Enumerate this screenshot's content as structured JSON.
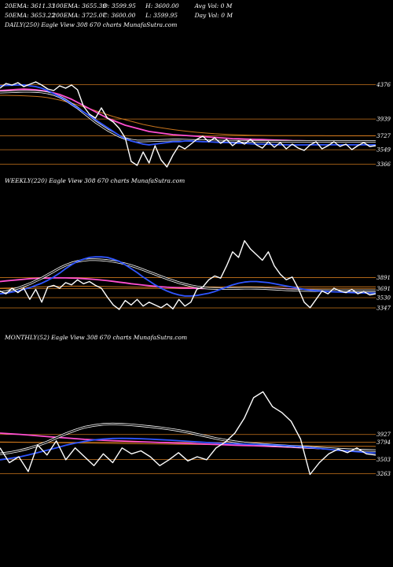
{
  "header": {
    "row1": [
      "20EMA: 3611.33",
      "100EMA: 3655.39",
      "O: 3599.95",
      "H: 3600.00",
      "Avg Vol: 0  M"
    ],
    "row2": [
      "50EMA: 3653.22",
      "200EMA: 3725.07",
      "C: 3600.00",
      "L: 3599.95",
      "Day Vol: 0  M"
    ]
  },
  "panels": [
    {
      "label": "DAILY(250) Eagle  View  308              670  charts MunafaSutra.com"
    },
    {
      "label": "WEEKLY(220) Eagle  View  308              670  charts MunafaSutra.com"
    },
    {
      "label": "MONTHLY(52) Eagle  View  308              670  charts MunafaSutra.com"
    }
  ],
  "colors": {
    "price": "#ffffff",
    "ema20": "#2f55ff",
    "ema50": "#ff4fd0",
    "ema100": "#ffffff",
    "ema200": "#c8741c",
    "level": "#c8741c"
  },
  "chart_data": [
    {
      "type": "line",
      "name": "DAILY(250)",
      "levels": [
        4376,
        3939,
        3727,
        3549,
        3366
      ],
      "ylim": [
        3300,
        4450
      ],
      "series": [
        {
          "key": "price",
          "values": [
            4330,
            4390,
            4370,
            4400,
            4350,
            4380,
            4410,
            4370,
            4320,
            4300,
            4360,
            4330,
            4370,
            4310,
            4100,
            4000,
            3950,
            4080,
            3950,
            3900,
            3820,
            3700,
            3400,
            3350,
            3520,
            3380,
            3600,
            3420,
            3330,
            3480,
            3600,
            3560,
            3620,
            3680,
            3720,
            3650,
            3700,
            3630,
            3680,
            3600,
            3660,
            3620,
            3680,
            3610,
            3570,
            3650,
            3580,
            3640,
            3560,
            3620,
            3570,
            3540,
            3610,
            3650,
            3560,
            3600,
            3650,
            3590,
            3620,
            3550,
            3600,
            3640,
            3590,
            3600
          ]
        },
        {
          "key": "ema20",
          "values": [
            4360,
            4365,
            4368,
            4370,
            4372,
            4360,
            4350,
            4330,
            4300,
            4260,
            4220,
            4180,
            4130,
            4080,
            4030,
            3980,
            3930,
            3880,
            3830,
            3780,
            3730,
            3690,
            3660,
            3640,
            3620,
            3610,
            3620,
            3630,
            3640,
            3650,
            3650,
            3660,
            3660,
            3655,
            3650,
            3650,
            3645,
            3640,
            3640,
            3635,
            3630,
            3630,
            3625,
            3620,
            3620,
            3618,
            3615,
            3612,
            3611,
            3610,
            3610,
            3610,
            3611,
            3611,
            3611,
            3611,
            3611,
            3611,
            3611,
            3611,
            3611,
            3611,
            3611,
            3611
          ]
        },
        {
          "key": "ema50",
          "values": [
            4300,
            4305,
            4310,
            4315,
            4318,
            4315,
            4310,
            4300,
            4290,
            4270,
            4250,
            4220,
            4190,
            4150,
            4110,
            4070,
            4030,
            3990,
            3950,
            3920,
            3890,
            3860,
            3840,
            3820,
            3800,
            3780,
            3770,
            3760,
            3750,
            3740,
            3735,
            3730,
            3725,
            3720,
            3715,
            3710,
            3705,
            3700,
            3695,
            3690,
            3688,
            3685,
            3682,
            3680,
            3678,
            3675,
            3672,
            3670,
            3668,
            3665,
            3664,
            3662,
            3660,
            3659,
            3658,
            3657,
            3656,
            3655,
            3655,
            3654,
            3654,
            3653,
            3653,
            3653
          ]
        },
        {
          "key": "ema100",
          "values": [
            4280,
            4282,
            4285,
            4288,
            4290,
            4290,
            4288,
            4282,
            4270,
            4250,
            4220,
            4180,
            4130,
            4080,
            4020,
            3960,
            3900,
            3850,
            3800,
            3760,
            3720,
            3690,
            3670,
            3660,
            3660,
            3662,
            3665,
            3668,
            3670,
            3672,
            3672,
            3670,
            3668,
            3666,
            3664,
            3662,
            3660,
            3659,
            3658,
            3658,
            3657,
            3657,
            3656,
            3656,
            3656,
            3656,
            3656,
            3656,
            3655,
            3655,
            3655,
            3655,
            3655,
            3655,
            3655,
            3655,
            3655,
            3655,
            3655,
            3655,
            3655,
            3655,
            3655,
            3655
          ]
        },
        {
          "key": "ema200",
          "values": [
            4240,
            4240,
            4238,
            4236,
            4234,
            4230,
            4226,
            4220,
            4210,
            4195,
            4180,
            4160,
            4140,
            4118,
            4095,
            4070,
            4045,
            4020,
            3995,
            3970,
            3950,
            3930,
            3910,
            3890,
            3870,
            3855,
            3840,
            3828,
            3816,
            3805,
            3795,
            3786,
            3778,
            3770,
            3764,
            3758,
            3752,
            3748,
            3744,
            3740,
            3737,
            3735,
            3733,
            3731,
            3730,
            3729,
            3728,
            3728,
            3727,
            3727,
            3727,
            3726,
            3726,
            3726,
            3726,
            3725,
            3725,
            3725,
            3725,
            3725,
            3725,
            3725,
            3725,
            3725
          ]
        }
      ]
    },
    {
      "type": "line",
      "name": "WEEKLY(220)",
      "levels": [
        3891,
        3691,
        3530,
        3347
      ],
      "ylim": [
        3150,
        4700
      ],
      "series": [
        {
          "key": "price",
          "values": [
            3650,
            3600,
            3700,
            3620,
            3700,
            3500,
            3680,
            3450,
            3720,
            3750,
            3700,
            3800,
            3760,
            3850,
            3780,
            3820,
            3750,
            3700,
            3540,
            3400,
            3320,
            3480,
            3400,
            3500,
            3380,
            3450,
            3400,
            3350,
            3420,
            3330,
            3500,
            3380,
            3450,
            3680,
            3720,
            3850,
            3920,
            3880,
            4100,
            4350,
            4250,
            4550,
            4400,
            4300,
            4200,
            4350,
            4100,
            3950,
            3850,
            3900,
            3700,
            3450,
            3350,
            3500,
            3650,
            3600,
            3700,
            3650,
            3620,
            3680,
            3600,
            3640,
            3580,
            3600
          ]
        },
        {
          "key": "ema20",
          "values": [
            3600,
            3610,
            3630,
            3650,
            3680,
            3710,
            3750,
            3790,
            3840,
            3900,
            3970,
            4050,
            4120,
            4180,
            4220,
            4250,
            4260,
            4260,
            4250,
            4220,
            4180,
            4120,
            4050,
            3980,
            3900,
            3830,
            3760,
            3700,
            3650,
            3610,
            3580,
            3560,
            3560,
            3570,
            3590,
            3610,
            3640,
            3680,
            3720,
            3760,
            3790,
            3810,
            3820,
            3820,
            3810,
            3800,
            3780,
            3760,
            3740,
            3720,
            3700,
            3680,
            3665,
            3655,
            3645,
            3640,
            3635,
            3630,
            3625,
            3620,
            3618,
            3615,
            3612,
            3611
          ]
        },
        {
          "key": "ema50",
          "values": [
            3820,
            3830,
            3840,
            3850,
            3860,
            3870,
            3875,
            3880,
            3882,
            3884,
            3885,
            3884,
            3882,
            3878,
            3872,
            3865,
            3856,
            3846,
            3835,
            3822,
            3808,
            3795,
            3780,
            3768,
            3756,
            3745,
            3735,
            3726,
            3718,
            3712,
            3706,
            3702,
            3700,
            3698,
            3696,
            3695,
            3695,
            3695,
            3696,
            3697,
            3698,
            3699,
            3700,
            3700,
            3699,
            3697,
            3694,
            3690,
            3686,
            3682,
            3677,
            3672,
            3668,
            3664,
            3661,
            3658,
            3656,
            3655,
            3654,
            3654,
            3653,
            3653,
            3653,
            3653
          ]
        },
        {
          "key": "ema100",
          "values": [
            3620,
            3640,
            3670,
            3700,
            3740,
            3780,
            3830,
            3880,
            3940,
            4000,
            4060,
            4110,
            4150,
            4180,
            4200,
            4210,
            4210,
            4205,
            4195,
            4180,
            4160,
            4135,
            4105,
            4070,
            4030,
            3990,
            3950,
            3910,
            3870,
            3835,
            3800,
            3770,
            3745,
            3725,
            3710,
            3700,
            3695,
            3693,
            3693,
            3695,
            3697,
            3700,
            3700,
            3698,
            3695,
            3690,
            3684,
            3678,
            3672,
            3668,
            3664,
            3661,
            3659,
            3657,
            3656,
            3656,
            3655,
            3655,
            3655,
            3655,
            3655,
            3655,
            3655,
            3655
          ]
        },
        {
          "key": "ema200",
          "values": [
            3700,
            3702,
            3705,
            3708,
            3712,
            3716,
            3720,
            3724,
            3728,
            3731,
            3733,
            3735,
            3736,
            3736,
            3735,
            3734,
            3732,
            3730,
            3728,
            3726,
            3724,
            3722,
            3720,
            3719,
            3718,
            3717,
            3716,
            3716,
            3716,
            3716,
            3717,
            3718,
            3719,
            3720,
            3721,
            3722,
            3723,
            3724,
            3725,
            3726,
            3726,
            3726,
            3726,
            3726,
            3726,
            3726,
            3725,
            3725,
            3725,
            3725,
            3725,
            3725,
            3725,
            3725,
            3725,
            3725,
            3725,
            3725,
            3725,
            3725,
            3725,
            3725,
            3725,
            3725
          ]
        }
      ]
    },
    {
      "type": "line",
      "name": "MONTHLY(52)",
      "levels": [
        3927,
        3794,
        3503,
        3263
      ],
      "ylim": [
        3150,
        4750
      ],
      "series": [
        {
          "key": "price",
          "values": [
            3700,
            3450,
            3550,
            3300,
            3750,
            3580,
            3820,
            3500,
            3700,
            3550,
            3400,
            3600,
            3450,
            3700,
            3600,
            3650,
            3550,
            3400,
            3500,
            3620,
            3480,
            3550,
            3500,
            3700,
            3800,
            3950,
            4200,
            4550,
            4650,
            4400,
            4300,
            4150,
            3850,
            3250,
            3450,
            3600,
            3680,
            3620,
            3700,
            3600,
            3580
          ]
        },
        {
          "key": "ema20",
          "values": [
            3500,
            3520,
            3545,
            3580,
            3620,
            3660,
            3700,
            3745,
            3780,
            3810,
            3835,
            3850,
            3860,
            3862,
            3860,
            3855,
            3848,
            3840,
            3832,
            3822,
            3812,
            3802,
            3792,
            3784,
            3776,
            3770,
            3765,
            3760,
            3755,
            3750,
            3742,
            3732,
            3720,
            3706,
            3690,
            3675,
            3660,
            3648,
            3635,
            3622,
            3611
          ]
        },
        {
          "key": "ema50",
          "values": [
            3950,
            3940,
            3930,
            3918,
            3905,
            3892,
            3880,
            3868,
            3856,
            3845,
            3836,
            3828,
            3822,
            3816,
            3810,
            3804,
            3798,
            3792,
            3787,
            3782,
            3776,
            3770,
            3764,
            3758,
            3752,
            3746,
            3741,
            3736,
            3730,
            3724,
            3718,
            3711,
            3704,
            3697,
            3690,
            3683,
            3676,
            3670,
            3664,
            3658,
            3653
          ]
        },
        {
          "key": "ema100",
          "values": [
            3600,
            3620,
            3650,
            3690,
            3740,
            3800,
            3870,
            3940,
            4000,
            4050,
            4080,
            4100,
            4105,
            4100,
            4090,
            4075,
            4060,
            4042,
            4020,
            3995,
            3965,
            3930,
            3895,
            3860,
            3830,
            3805,
            3785,
            3770,
            3758,
            3748,
            3738,
            3728,
            3718,
            3708,
            3698,
            3688,
            3680,
            3672,
            3665,
            3660,
            3655
          ]
        },
        {
          "key": "ema200",
          "values": [
            3800,
            3798,
            3796,
            3794,
            3792,
            3790,
            3788,
            3786,
            3784,
            3782,
            3780,
            3778,
            3776,
            3774,
            3772,
            3770,
            3768,
            3766,
            3764,
            3762,
            3760,
            3758,
            3756,
            3754,
            3752,
            3750,
            3748,
            3746,
            3744,
            3742,
            3740,
            3738,
            3736,
            3734,
            3732,
            3730,
            3729,
            3728,
            3727,
            3726,
            3725
          ]
        }
      ]
    }
  ]
}
